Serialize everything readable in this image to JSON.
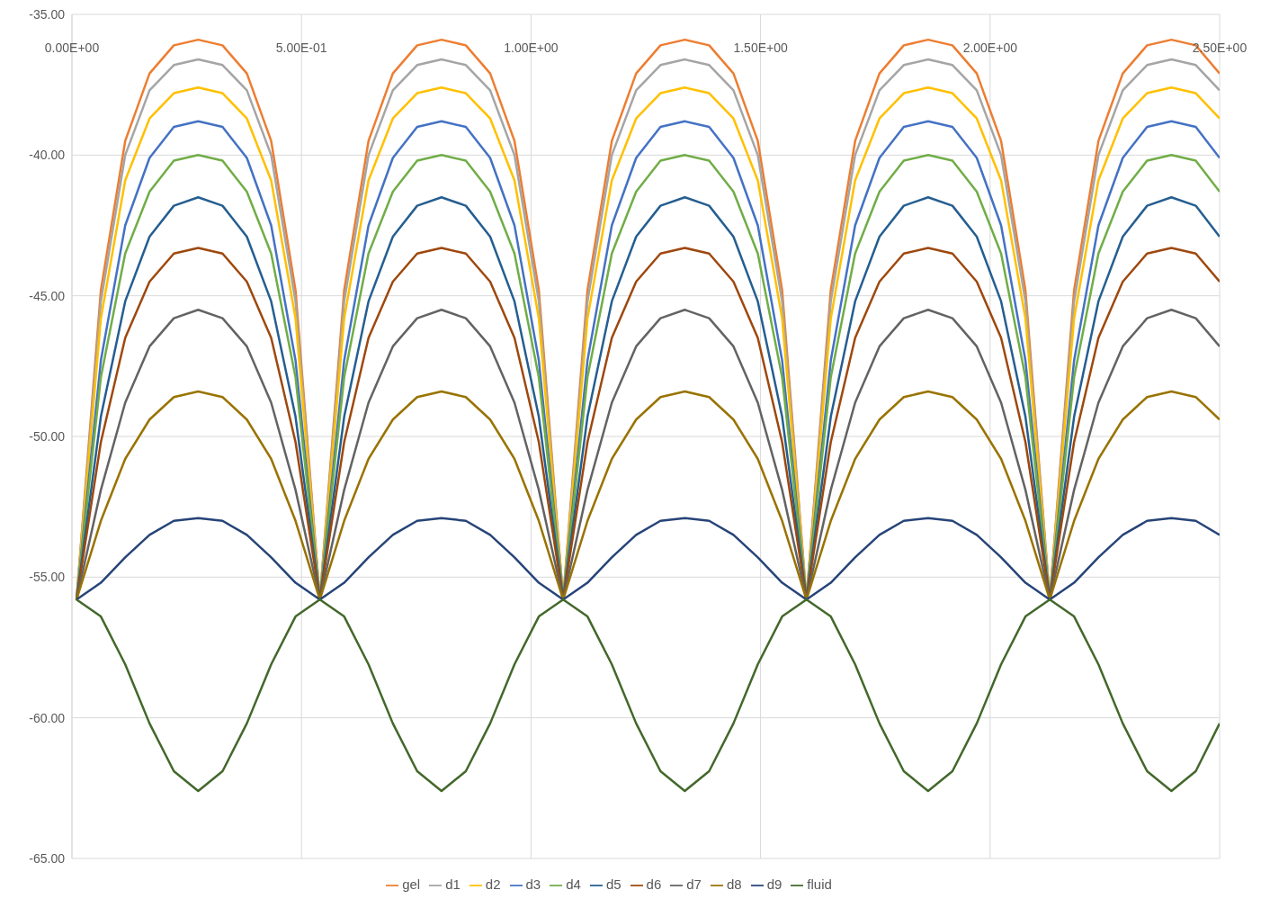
{
  "chart_data": {
    "type": "line",
    "x": [
      0.01,
      0.063,
      0.116,
      0.169,
      0.222,
      0.275,
      0.328,
      0.381,
      0.434,
      0.487,
      0.54,
      0.593,
      0.646,
      0.699,
      0.752,
      0.805,
      0.858,
      0.911,
      0.964,
      1.017,
      1.07,
      1.123,
      1.176,
      1.229,
      1.282,
      1.335,
      1.388,
      1.441,
      1.494,
      1.547,
      1.6,
      1.653,
      1.706,
      1.759,
      1.812,
      1.865,
      1.918,
      1.971,
      2.024,
      2.077,
      2.13,
      2.183,
      2.236,
      2.289,
      2.342,
      2.395,
      2.448,
      2.5
    ],
    "xlim": [
      0,
      2.5
    ],
    "xticks": [
      {
        "value": 0,
        "label": "0.00E+00"
      },
      {
        "value": 0.5,
        "label": "5.00E-01"
      },
      {
        "value": 1,
        "label": "1.00E+00"
      },
      {
        "value": 1.5,
        "label": "1.50E+00"
      },
      {
        "value": 2,
        "label": "2.00E+00"
      },
      {
        "value": 2.5,
        "label": "2.50E+00"
      }
    ],
    "ylim": [
      -65,
      -35
    ],
    "yticks": [
      {
        "value": -35,
        "label": "-35.00"
      },
      {
        "value": -40,
        "label": "-40.00"
      },
      {
        "value": -45,
        "label": "-45.00"
      },
      {
        "value": -50,
        "label": "-50.00"
      },
      {
        "value": -55,
        "label": "-55.00"
      },
      {
        "value": -60,
        "label": "-60.00"
      },
      {
        "value": -65,
        "label": "-65.00"
      }
    ],
    "grid": true,
    "legend": "bottom",
    "marker": "none",
    "line_style": "solid",
    "series": [
      {
        "name": "gel",
        "color": "#ed7d31",
        "values": [
          -55.8,
          -44.8,
          -39.5,
          -37.1,
          -36.1,
          -35.9,
          -36.1,
          -37.1,
          -39.5,
          -44.8,
          -55.8,
          -44.8,
          -39.5,
          -37.1,
          -36.1,
          -35.9,
          -36.1,
          -37.1,
          -39.5,
          -44.8,
          -55.8,
          -44.8,
          -39.5,
          -37.1,
          -36.1,
          -35.9,
          -36.1,
          -37.1,
          -39.5,
          -44.8,
          -55.8,
          -44.8,
          -39.5,
          -37.1,
          -36.1,
          -35.9,
          -36.1,
          -37.1,
          -39.5,
          -44.8,
          -55.8,
          -44.8,
          -39.5,
          -37.1,
          -36.1,
          -35.9,
          -36.1,
          -37.1
        ]
      },
      {
        "name": "d1",
        "color": "#a5a5a5",
        "values": [
          -55.8,
          -45.2,
          -40.0,
          -37.7,
          -36.8,
          -36.6,
          -36.8,
          -37.7,
          -40.0,
          -45.2,
          -55.8,
          -45.2,
          -40.0,
          -37.7,
          -36.8,
          -36.6,
          -36.8,
          -37.7,
          -40.0,
          -45.2,
          -55.8,
          -45.2,
          -40.0,
          -37.7,
          -36.8,
          -36.6,
          -36.8,
          -37.7,
          -40.0,
          -45.2,
          -55.8,
          -45.2,
          -40.0,
          -37.7,
          -36.8,
          -36.6,
          -36.8,
          -37.7,
          -40.0,
          -45.2,
          -55.8,
          -45.2,
          -40.0,
          -37.7,
          -36.8,
          -36.6,
          -36.8,
          -37.7
        ]
      },
      {
        "name": "d2",
        "color": "#ffc000",
        "values": [
          -55.8,
          -45.8,
          -40.9,
          -38.7,
          -37.8,
          -37.6,
          -37.8,
          -38.7,
          -40.9,
          -45.8,
          -55.8,
          -45.8,
          -40.9,
          -38.7,
          -37.8,
          -37.6,
          -37.8,
          -38.7,
          -40.9,
          -45.8,
          -55.8,
          -45.8,
          -40.9,
          -38.7,
          -37.8,
          -37.6,
          -37.8,
          -38.7,
          -40.9,
          -45.8,
          -55.8,
          -45.8,
          -40.9,
          -38.7,
          -37.8,
          -37.6,
          -37.8,
          -38.7,
          -40.9,
          -45.8,
          -55.8,
          -45.8,
          -40.9,
          -38.7,
          -37.8,
          -37.6,
          -37.8,
          -38.7
        ]
      },
      {
        "name": "d3",
        "color": "#4472c4",
        "values": [
          -55.8,
          -47.3,
          -42.5,
          -40.1,
          -39.0,
          -38.8,
          -39.0,
          -40.1,
          -42.5,
          -47.3,
          -55.8,
          -47.3,
          -42.5,
          -40.1,
          -39.0,
          -38.8,
          -39.0,
          -40.1,
          -42.5,
          -47.3,
          -55.8,
          -47.3,
          -42.5,
          -40.1,
          -39.0,
          -38.8,
          -39.0,
          -40.1,
          -42.5,
          -47.3,
          -55.8,
          -47.3,
          -42.5,
          -40.1,
          -39.0,
          -38.8,
          -39.0,
          -40.1,
          -42.5,
          -47.3,
          -55.8,
          -47.3,
          -42.5,
          -40.1,
          -39.0,
          -38.8,
          -39.0,
          -40.1
        ]
      },
      {
        "name": "d4",
        "color": "#70ad47",
        "values": [
          -55.8,
          -47.9,
          -43.5,
          -41.3,
          -40.2,
          -40.0,
          -40.2,
          -41.3,
          -43.5,
          -47.9,
          -55.8,
          -47.9,
          -43.5,
          -41.3,
          -40.2,
          -40.0,
          -40.2,
          -41.3,
          -43.5,
          -47.9,
          -55.8,
          -47.9,
          -43.5,
          -41.3,
          -40.2,
          -40.0,
          -40.2,
          -41.3,
          -43.5,
          -47.9,
          -55.8,
          -47.9,
          -43.5,
          -41.3,
          -40.2,
          -40.0,
          -40.2,
          -41.3,
          -43.5,
          -47.9,
          -55.8,
          -47.9,
          -43.5,
          -41.3,
          -40.2,
          -40.0,
          -40.2,
          -41.3
        ]
      },
      {
        "name": "d5",
        "color": "#255e91",
        "values": [
          -55.8,
          -49.3,
          -45.2,
          -42.9,
          -41.8,
          -41.5,
          -41.8,
          -42.9,
          -45.2,
          -49.3,
          -55.8,
          -49.3,
          -45.2,
          -42.9,
          -41.8,
          -41.5,
          -41.8,
          -42.9,
          -45.2,
          -49.3,
          -55.8,
          -49.3,
          -45.2,
          -42.9,
          -41.8,
          -41.5,
          -41.8,
          -42.9,
          -45.2,
          -49.3,
          -55.8,
          -49.3,
          -45.2,
          -42.9,
          -41.8,
          -41.5,
          -41.8,
          -42.9,
          -45.2,
          -49.3,
          -55.8,
          -49.3,
          -45.2,
          -42.9,
          -41.8,
          -41.5,
          -41.8,
          -42.9
        ]
      },
      {
        "name": "d6",
        "color": "#9e480e",
        "values": [
          -55.8,
          -50.2,
          -46.5,
          -44.5,
          -43.5,
          -43.3,
          -43.5,
          -44.5,
          -46.5,
          -50.2,
          -55.8,
          -50.2,
          -46.5,
          -44.5,
          -43.5,
          -43.3,
          -43.5,
          -44.5,
          -46.5,
          -50.2,
          -55.8,
          -50.2,
          -46.5,
          -44.5,
          -43.5,
          -43.3,
          -43.5,
          -44.5,
          -46.5,
          -50.2,
          -55.8,
          -50.2,
          -46.5,
          -44.5,
          -43.5,
          -43.3,
          -43.5,
          -44.5,
          -46.5,
          -50.2,
          -55.8,
          -50.2,
          -46.5,
          -44.5,
          -43.5,
          -43.3,
          -43.5,
          -44.5
        ]
      },
      {
        "name": "d7",
        "color": "#636363",
        "values": [
          -55.8,
          -51.9,
          -48.8,
          -46.8,
          -45.8,
          -45.5,
          -45.8,
          -46.8,
          -48.8,
          -51.9,
          -55.8,
          -51.9,
          -48.8,
          -46.8,
          -45.8,
          -45.5,
          -45.8,
          -46.8,
          -48.8,
          -51.9,
          -55.8,
          -51.9,
          -48.8,
          -46.8,
          -45.8,
          -45.5,
          -45.8,
          -46.8,
          -48.8,
          -51.9,
          -55.8,
          -51.9,
          -48.8,
          -46.8,
          -45.8,
          -45.5,
          -45.8,
          -46.8,
          -48.8,
          -51.9,
          -55.8,
          -51.9,
          -48.8,
          -46.8,
          -45.8,
          -45.5,
          -45.8,
          -46.8
        ]
      },
      {
        "name": "d8",
        "color": "#997300",
        "values": [
          -55.8,
          -53.0,
          -50.8,
          -49.4,
          -48.6,
          -48.4,
          -48.6,
          -49.4,
          -50.8,
          -53.0,
          -55.8,
          -53.0,
          -50.8,
          -49.4,
          -48.6,
          -48.4,
          -48.6,
          -49.4,
          -50.8,
          -53.0,
          -55.8,
          -53.0,
          -50.8,
          -49.4,
          -48.6,
          -48.4,
          -48.6,
          -49.4,
          -50.8,
          -53.0,
          -55.8,
          -53.0,
          -50.8,
          -49.4,
          -48.6,
          -48.4,
          -48.6,
          -49.4,
          -50.8,
          -53.0,
          -55.8,
          -53.0,
          -50.8,
          -49.4,
          -48.6,
          -48.4,
          -48.6,
          -49.4
        ]
      },
      {
        "name": "d9",
        "color": "#264478",
        "values": [
          -55.8,
          -55.2,
          -54.3,
          -53.5,
          -53.0,
          -52.9,
          -53.0,
          -53.5,
          -54.3,
          -55.2,
          -55.8,
          -55.2,
          -54.3,
          -53.5,
          -53.0,
          -52.9,
          -53.0,
          -53.5,
          -54.3,
          -55.2,
          -55.8,
          -55.2,
          -54.3,
          -53.5,
          -53.0,
          -52.9,
          -53.0,
          -53.5,
          -54.3,
          -55.2,
          -55.8,
          -55.2,
          -54.3,
          -53.5,
          -53.0,
          -52.9,
          -53.0,
          -53.5,
          -54.3,
          -55.2,
          -55.8,
          -55.2,
          -54.3,
          -53.5,
          -53.0,
          -52.9,
          -53.0,
          -53.5
        ]
      },
      {
        "name": "fluid",
        "color": "#43682b",
        "values": [
          -55.8,
          -56.4,
          -58.1,
          -60.2,
          -61.9,
          -62.6,
          -61.9,
          -60.2,
          -58.1,
          -56.4,
          -55.8,
          -56.4,
          -58.1,
          -60.2,
          -61.9,
          -62.6,
          -61.9,
          -60.2,
          -58.1,
          -56.4,
          -55.8,
          -56.4,
          -58.1,
          -60.2,
          -61.9,
          -62.6,
          -61.9,
          -60.2,
          -58.1,
          -56.4,
          -55.8,
          -56.4,
          -58.1,
          -60.2,
          -61.9,
          -62.6,
          -61.9,
          -60.2,
          -58.1,
          -56.4,
          -55.8,
          -56.4,
          -58.1,
          -60.2,
          -61.9,
          -62.6,
          -61.9,
          -60.2
        ]
      }
    ]
  }
}
